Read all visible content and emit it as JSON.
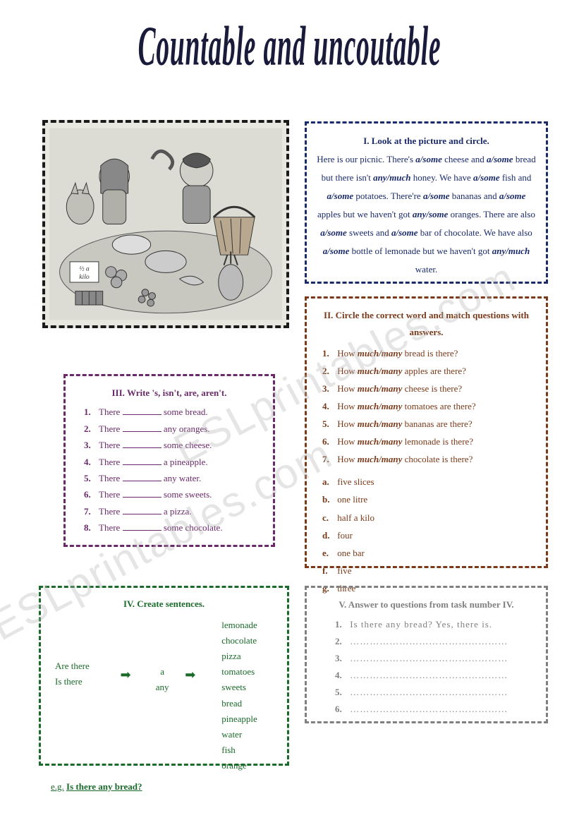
{
  "title": "Countable and uncoutable",
  "watermark": "ESLprintables.com",
  "colors": {
    "title": "#1a1a3a",
    "box1_border": "#1a2a6a",
    "box2_border": "#7a3a1a",
    "box3_border": "#6a2a6a",
    "box4_border": "#1a6a2a",
    "box5_border": "#808080",
    "pic_border": "#1a1a1a"
  },
  "box1": {
    "header": "I. Look at the picture and circle.",
    "text_parts": [
      "Here is our picnic. There's ",
      "a/some",
      " cheese and ",
      "a/some",
      " bread but there isn't ",
      "any/much",
      " honey. We have ",
      "a/some",
      " fish and ",
      "a/some",
      " potatoes. There're ",
      "a/some",
      " bananas and ",
      "a/some",
      " apples but we haven't got ",
      "any/some",
      " oranges. There are also ",
      "a/some",
      " sweets and ",
      "a/some",
      " bar of chocolate. We have also ",
      "a/some",
      " bottle of lemonade but we haven't got ",
      "any/much",
      " water."
    ]
  },
  "box2": {
    "header": "II. Circle the correct word and match questions with answers.",
    "questions": [
      {
        "n": "1.",
        "pre": "How ",
        "choice": "much/many",
        "post": " bread is there?"
      },
      {
        "n": "2.",
        "pre": "How ",
        "choice": "much/many",
        "post": " apples are there?"
      },
      {
        "n": "3.",
        "pre": "How ",
        "choice": "much/many",
        "post": " cheese is there?"
      },
      {
        "n": "4.",
        "pre": "How ",
        "choice": "much/many",
        "post": " tomatoes are there?"
      },
      {
        "n": "5.",
        "pre": "How ",
        "choice": "much/many",
        "post": " bananas are there?"
      },
      {
        "n": "6.",
        "pre": "How ",
        "choice": "much/many",
        "post": " lemonade is there?"
      },
      {
        "n": "7.",
        "pre": "How ",
        "choice": "much/many",
        "post": " chocolate is there?"
      }
    ],
    "answers": [
      {
        "n": "a.",
        "t": "five slices"
      },
      {
        "n": "b.",
        "t": "one litre"
      },
      {
        "n": "c.",
        "t": "half a kilo"
      },
      {
        "n": "d.",
        "t": "four"
      },
      {
        "n": "e.",
        "t": "one bar"
      },
      {
        "n": "f.",
        "t": "five"
      },
      {
        "n": "g.",
        "t": "three"
      }
    ]
  },
  "box3": {
    "header": "III. Write 's, isn't, are, aren't.",
    "items": [
      {
        "n": "1.",
        "pre": "There ",
        "post": " some bread."
      },
      {
        "n": "2.",
        "pre": "There ",
        "post": " any oranges."
      },
      {
        "n": "3.",
        "pre": "There ",
        "post": " some cheese."
      },
      {
        "n": "4.",
        "pre": "There ",
        "post": " a pineapple."
      },
      {
        "n": "5.",
        "pre": "There ",
        "post": " any water."
      },
      {
        "n": "6.",
        "pre": "There ",
        "post": " some sweets."
      },
      {
        "n": "7.",
        "pre": "There ",
        "post": " a pizza."
      },
      {
        "n": "8.",
        "pre": "There ",
        "post": " some chocolate."
      }
    ]
  },
  "box4": {
    "header": "IV. Create sentences.",
    "col1": [
      "Are there",
      "Is there"
    ],
    "col2": "a",
    "col3": "any",
    "col5": [
      "lemonade",
      "chocolate",
      "pizza",
      "tomatoes",
      "sweets",
      "bread",
      "pineapple",
      "water",
      "fish",
      "orange"
    ],
    "example_label": "e.g.",
    "example_text": "Is there any bread?"
  },
  "box5": {
    "header": "V. Answer to questions from task number IV.",
    "items": [
      {
        "n": "1.",
        "t": "Is there any bread? Yes, there is."
      },
      {
        "n": "2.",
        "t": "…………………………………………"
      },
      {
        "n": "3.",
        "t": "…………………………………………"
      },
      {
        "n": "4.",
        "t": "…………………………………………"
      },
      {
        "n": "5.",
        "t": "…………………………………………"
      },
      {
        "n": "6.",
        "t": "…………………………………………"
      }
    ]
  }
}
